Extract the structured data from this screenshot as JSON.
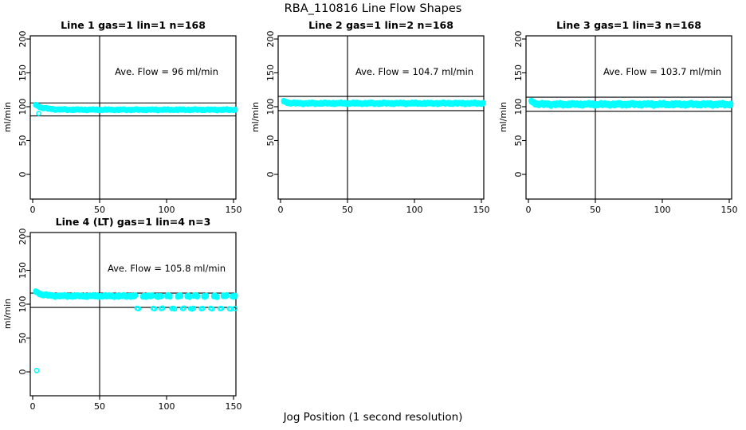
{
  "figure": {
    "title": "RBA_110816  Line Flow Shapes",
    "xlabel": "Jog Position (1 second resolution)"
  },
  "chart_data": [
    {
      "type": "scatter",
      "title": "Line 1 gas=1 lin=1 n=168",
      "annotation": "Ave. Flow =  96  ml/min",
      "ave_flow_ml_min": 96,
      "n": 168,
      "ylabel": "ml/min",
      "x_ticks": [
        0,
        50,
        100,
        150
      ],
      "y_ticks": [
        0,
        50,
        100,
        150,
        200
      ],
      "xlim": [
        -2,
        153
      ],
      "ylim": [
        -36,
        205
      ],
      "vline_x": 50,
      "hlines": [
        105.6,
        86.4
      ],
      "point_color": "#00ffff",
      "band": {
        "x_from": 2,
        "x_to": 151,
        "step": 1,
        "y_start": 103,
        "y_settle": 95.5,
        "decay": 6,
        "spread": 1.1,
        "gaps": []
      },
      "extra_points": [
        [
          4.5,
          90
        ]
      ]
    },
    {
      "type": "scatter",
      "title": "Line 2 gas=1 lin=2 n=168",
      "annotation": "Ave. Flow =  104.7  ml/min",
      "ave_flow_ml_min": 104.7,
      "n": 168,
      "ylabel": "ml/min",
      "x_ticks": [
        0,
        50,
        100,
        150
      ],
      "y_ticks": [
        0,
        50,
        100,
        150,
        200
      ],
      "xlim": [
        -2,
        153
      ],
      "ylim": [
        -36,
        205
      ],
      "vline_x": 50,
      "hlines": [
        115.2,
        94.2
      ],
      "point_color": "#00ffff",
      "band": {
        "x_from": 2,
        "x_to": 151,
        "step": 1,
        "y_start": 108.5,
        "y_settle": 105,
        "decay": 3,
        "spread": 1.4,
        "gaps": []
      },
      "extra_points": []
    },
    {
      "type": "scatter",
      "title": "Line 3 gas=1 lin=3 n=168",
      "annotation": "Ave. Flow =  103.7  ml/min",
      "ave_flow_ml_min": 103.7,
      "n": 168,
      "ylabel": "ml/min",
      "x_ticks": [
        0,
        50,
        100,
        150
      ],
      "y_ticks": [
        0,
        50,
        100,
        150,
        200
      ],
      "xlim": [
        -2,
        153
      ],
      "ylim": [
        -36,
        205
      ],
      "vline_x": 50,
      "hlines": [
        114.1,
        93.3
      ],
      "point_color": "#00ffff",
      "band": {
        "x_from": 2,
        "x_to": 151,
        "step": 1,
        "y_start": 108.5,
        "y_settle": 103.5,
        "decay": 2.5,
        "spread": 2.0,
        "gaps": []
      },
      "extra_points": [
        [
          2,
          109
        ]
      ]
    },
    {
      "type": "scatter",
      "title": "Line 4 (LT) gas=1 lin=4 n=3",
      "annotation": "Ave. Flow =  105.8  ml/min",
      "ave_flow_ml_min": 105.8,
      "n": 3,
      "ylabel": "ml/min",
      "x_ticks": [
        0,
        50,
        100,
        150
      ],
      "y_ticks": [
        0,
        50,
        100,
        150,
        200
      ],
      "xlim": [
        -2,
        153
      ],
      "ylim": [
        -36,
        205
      ],
      "vline_x": 50,
      "hlines": [
        116.4,
        95.2
      ],
      "point_color": "#00ffff",
      "band": {
        "x_from": 2,
        "x_to": 151,
        "step": 1,
        "y_start": 119,
        "y_settle": 112,
        "decay": 5,
        "spread": 1.5,
        "gaps": [
          [
            78,
            81
          ],
          [
            90,
            92
          ],
          [
            97,
            99
          ],
          [
            104,
            107
          ],
          [
            112,
            114
          ],
          [
            118,
            120
          ],
          [
            124,
            127
          ],
          [
            131,
            134
          ],
          [
            139,
            141
          ],
          [
            146,
            148
          ]
        ]
      },
      "extra_points": [
        [
          3,
          2
        ],
        [
          78,
          94
        ],
        [
          79,
          93.2
        ],
        [
          90,
          93.8
        ],
        [
          91,
          93.2
        ],
        [
          96,
          93.5
        ],
        [
          97,
          94.2
        ],
        [
          104,
          93.6
        ],
        [
          105,
          94
        ],
        [
          106,
          93
        ],
        [
          112,
          93.5
        ],
        [
          113,
          94.3
        ],
        [
          118,
          93.4
        ],
        [
          119,
          92.8
        ],
        [
          120,
          93.9
        ],
        [
          126,
          93.3
        ],
        [
          127,
          93.8
        ],
        [
          133,
          94
        ],
        [
          134,
          93.1
        ],
        [
          140,
          93.5
        ],
        [
          141,
          93.8
        ],
        [
          147,
          93.4
        ],
        [
          148,
          92.9
        ],
        [
          151,
          93.6
        ]
      ]
    }
  ]
}
